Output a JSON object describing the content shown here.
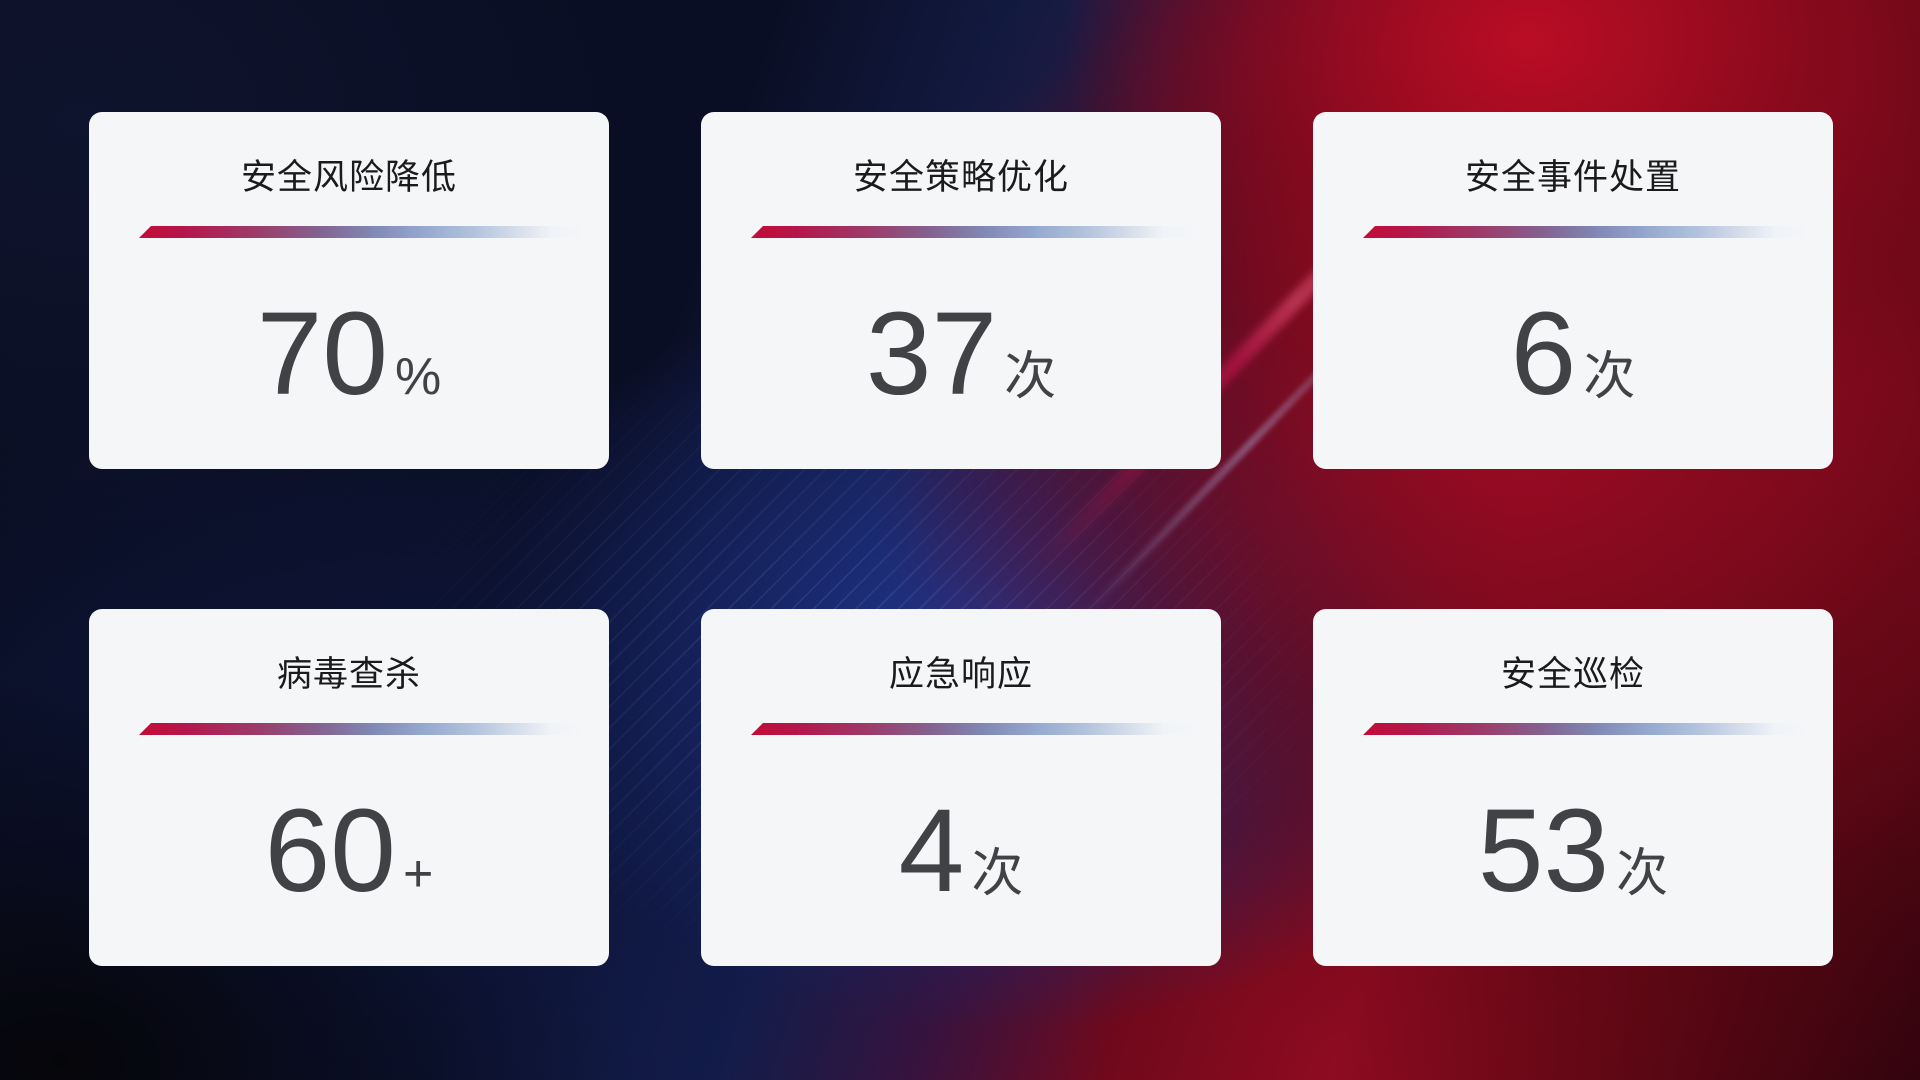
{
  "theme": {
    "bg_dark": "#050609",
    "bg_red": "#9c0c24",
    "bg_blue": "#1c2f74",
    "card_bg": "#f5f6f8",
    "title_color": "#1b1b1e",
    "value_color": "#404245",
    "divider_start": "#c30c37",
    "divider_mid": "#8087b4"
  },
  "cards": [
    {
      "title": "安全风险降低",
      "value": "70",
      "unit": "%"
    },
    {
      "title": "安全策略优化",
      "value": "37",
      "unit": "次"
    },
    {
      "title": "安全事件处置",
      "value": "6",
      "unit": "次"
    },
    {
      "title": "病毒查杀",
      "value": "60",
      "unit": "+"
    },
    {
      "title": "应急响应",
      "value": "4",
      "unit": "次"
    },
    {
      "title": "安全巡检",
      "value": "53",
      "unit": "次"
    }
  ]
}
